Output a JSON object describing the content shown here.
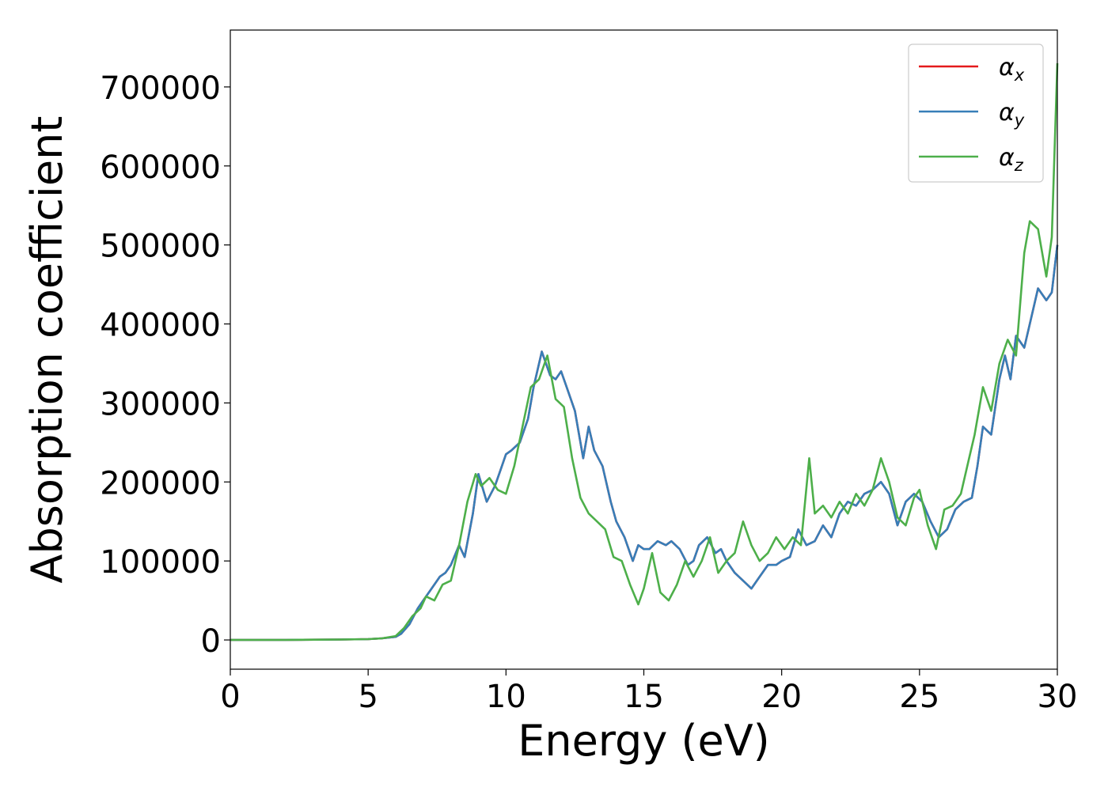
{
  "chart_data": {
    "type": "line",
    "title": "",
    "xlabel": "Energy (eV)",
    "ylabel": "Absorption coefficient",
    "xlim": [
      0,
      30
    ],
    "ylim": [
      -37000,
      772000
    ],
    "xticks": [
      0,
      5,
      10,
      15,
      20,
      25,
      30
    ],
    "yticks": [
      0,
      100000,
      200000,
      300000,
      400000,
      500000,
      600000,
      700000
    ],
    "xtick_labels": [
      "0",
      "5",
      "10",
      "15",
      "20",
      "25",
      "30"
    ],
    "ytick_labels": [
      "0",
      "100000",
      "200000",
      "300000",
      "400000",
      "500000",
      "600000",
      "700000"
    ],
    "grid": false,
    "legend_position": "top-right",
    "series": [
      {
        "name": "α_x",
        "legend_base": "α",
        "legend_sub": "x",
        "color": "#e41a1c",
        "x": [
          0,
          2,
          4,
          5,
          5.5,
          6,
          6.2,
          6.5,
          6.8,
          7,
          7.3,
          7.6,
          7.8,
          8,
          8.3,
          8.5,
          8.8,
          9,
          9.3,
          9.6,
          9.8,
          10,
          10.2,
          10.5,
          10.8,
          11,
          11.3,
          11.6,
          11.8,
          12,
          12.2,
          12.5,
          12.8,
          13,
          13.2,
          13.5,
          13.8,
          14,
          14.3,
          14.6,
          14.8,
          15,
          15.2,
          15.5,
          15.8,
          16,
          16.3,
          16.6,
          16.8,
          17,
          17.3,
          17.6,
          17.8,
          18,
          18.3,
          18.6,
          18.9,
          19.2,
          19.5,
          19.8,
          20,
          20.3,
          20.6,
          20.9,
          21.2,
          21.5,
          21.8,
          22.1,
          22.4,
          22.7,
          23,
          23.3,
          23.6,
          23.9,
          24.2,
          24.5,
          24.8,
          25.1,
          25.4,
          25.7,
          26,
          26.3,
          26.6,
          26.9,
          27.1,
          27.3,
          27.6,
          27.9,
          28.1,
          28.3,
          28.5,
          28.8,
          29,
          29.3,
          29.6,
          29.8,
          30
        ],
        "y": [
          0,
          0,
          500,
          1000,
          2000,
          4000,
          8000,
          20000,
          40000,
          50000,
          65000,
          80000,
          85000,
          95000,
          120000,
          105000,
          160000,
          210000,
          175000,
          195000,
          215000,
          235000,
          240000,
          250000,
          280000,
          320000,
          365000,
          335000,
          330000,
          340000,
          320000,
          290000,
          230000,
          270000,
          240000,
          220000,
          175000,
          150000,
          130000,
          100000,
          120000,
          115000,
          115000,
          125000,
          120000,
          125000,
          115000,
          95000,
          100000,
          120000,
          130000,
          110000,
          115000,
          100000,
          85000,
          75000,
          65000,
          80000,
          95000,
          95000,
          100000,
          105000,
          140000,
          120000,
          125000,
          145000,
          130000,
          160000,
          175000,
          170000,
          185000,
          190000,
          200000,
          185000,
          145000,
          175000,
          185000,
          175000,
          150000,
          130000,
          140000,
          165000,
          175000,
          180000,
          220000,
          270000,
          260000,
          330000,
          360000,
          330000,
          385000,
          370000,
          400000,
          445000,
          430000,
          440000,
          500000
        ]
      },
      {
        "name": "α_y",
        "legend_base": "α",
        "legend_sub": "y",
        "color": "#377eb8",
        "x": [
          0,
          2,
          4,
          5,
          5.5,
          6,
          6.2,
          6.5,
          6.8,
          7,
          7.3,
          7.6,
          7.8,
          8,
          8.3,
          8.5,
          8.8,
          9,
          9.3,
          9.6,
          9.8,
          10,
          10.2,
          10.5,
          10.8,
          11,
          11.3,
          11.6,
          11.8,
          12,
          12.2,
          12.5,
          12.8,
          13,
          13.2,
          13.5,
          13.8,
          14,
          14.3,
          14.6,
          14.8,
          15,
          15.2,
          15.5,
          15.8,
          16,
          16.3,
          16.6,
          16.8,
          17,
          17.3,
          17.6,
          17.8,
          18,
          18.3,
          18.6,
          18.9,
          19.2,
          19.5,
          19.8,
          20,
          20.3,
          20.6,
          20.9,
          21.2,
          21.5,
          21.8,
          22.1,
          22.4,
          22.7,
          23,
          23.3,
          23.6,
          23.9,
          24.2,
          24.5,
          24.8,
          25.1,
          25.4,
          25.7,
          26,
          26.3,
          26.6,
          26.9,
          27.1,
          27.3,
          27.6,
          27.9,
          28.1,
          28.3,
          28.5,
          28.8,
          29,
          29.3,
          29.6,
          29.8,
          30
        ],
        "y": [
          0,
          0,
          500,
          1000,
          2000,
          4000,
          8000,
          20000,
          40000,
          50000,
          65000,
          80000,
          85000,
          95000,
          120000,
          105000,
          160000,
          210000,
          175000,
          195000,
          215000,
          235000,
          240000,
          250000,
          280000,
          320000,
          365000,
          335000,
          330000,
          340000,
          320000,
          290000,
          230000,
          270000,
          240000,
          220000,
          175000,
          150000,
          130000,
          100000,
          120000,
          115000,
          115000,
          125000,
          120000,
          125000,
          115000,
          95000,
          100000,
          120000,
          130000,
          110000,
          115000,
          100000,
          85000,
          75000,
          65000,
          80000,
          95000,
          95000,
          100000,
          105000,
          140000,
          120000,
          125000,
          145000,
          130000,
          160000,
          175000,
          170000,
          185000,
          190000,
          200000,
          185000,
          145000,
          175000,
          185000,
          175000,
          150000,
          130000,
          140000,
          165000,
          175000,
          180000,
          220000,
          270000,
          260000,
          330000,
          360000,
          330000,
          385000,
          370000,
          400000,
          445000,
          430000,
          440000,
          500000
        ]
      },
      {
        "name": "α_z",
        "legend_base": "α",
        "legend_sub": "z",
        "color": "#4daf4a",
        "x": [
          0,
          2,
          4,
          5,
          5.5,
          6,
          6.3,
          6.6,
          6.9,
          7.1,
          7.4,
          7.7,
          8,
          8.3,
          8.6,
          8.9,
          9.1,
          9.4,
          9.7,
          10,
          10.3,
          10.6,
          10.9,
          11.2,
          11.5,
          11.8,
          12.1,
          12.4,
          12.7,
          13,
          13.3,
          13.6,
          13.9,
          14.2,
          14.5,
          14.8,
          15,
          15.3,
          15.6,
          15.9,
          16.2,
          16.5,
          16.8,
          17.1,
          17.4,
          17.7,
          18,
          18.3,
          18.6,
          18.9,
          19.2,
          19.5,
          19.8,
          20.1,
          20.4,
          20.7,
          21,
          21.2,
          21.5,
          21.8,
          22.1,
          22.4,
          22.7,
          23,
          23.3,
          23.6,
          23.9,
          24.2,
          24.5,
          24.8,
          25,
          25.3,
          25.6,
          25.9,
          26.2,
          26.5,
          26.8,
          27,
          27.3,
          27.6,
          27.9,
          28.2,
          28.5,
          28.8,
          29,
          29.3,
          29.6,
          29.8,
          30
        ],
        "y": [
          0,
          0,
          500,
          1000,
          2000,
          5000,
          15000,
          30000,
          40000,
          55000,
          50000,
          70000,
          75000,
          120000,
          175000,
          210000,
          195000,
          205000,
          190000,
          185000,
          220000,
          270000,
          320000,
          330000,
          360000,
          305000,
          295000,
          230000,
          180000,
          160000,
          150000,
          140000,
          105000,
          100000,
          70000,
          45000,
          65000,
          110000,
          60000,
          50000,
          70000,
          100000,
          80000,
          100000,
          130000,
          85000,
          100000,
          110000,
          150000,
          120000,
          100000,
          110000,
          130000,
          115000,
          130000,
          120000,
          230000,
          160000,
          170000,
          155000,
          175000,
          160000,
          185000,
          170000,
          190000,
          230000,
          200000,
          155000,
          145000,
          180000,
          190000,
          145000,
          115000,
          165000,
          170000,
          185000,
          230000,
          260000,
          320000,
          290000,
          350000,
          380000,
          360000,
          490000,
          530000,
          520000,
          460000,
          510000,
          730000
        ]
      }
    ]
  }
}
